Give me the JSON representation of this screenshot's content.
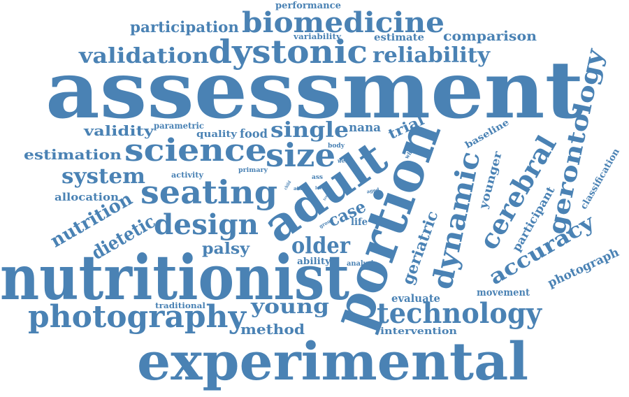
{
  "word_color": "#4a82b4",
  "background_color": "#ffffff",
  "words": {
    "assessment": "assessment",
    "nutritionist": "nutritionist",
    "experimental": "experimental",
    "portion": "portion",
    "adult": "adult",
    "biomedicine": "biomedicine",
    "dystonic": "dystonic",
    "validation": "validation",
    "reliability": "reliability",
    "participation": "participation",
    "performance": "performance",
    "comparison": "comparison",
    "variability": "variability",
    "estimate": "estimate",
    "gerontology": "gerontology",
    "cerebral": "cerebral",
    "dynamic": "dynamic",
    "accuracy": "accuracy",
    "science": "science",
    "seating": "seating",
    "design": "design",
    "size": "size",
    "single": "single",
    "nana": "nana",
    "trial": "trial",
    "baseline": "baseline",
    "younger": "younger",
    "photography": "photography",
    "technology": "technology",
    "young": "young",
    "older": "older",
    "palsy": "palsy",
    "system": "system",
    "estimation": "estimation",
    "validity": "validity",
    "parametric": "parametric",
    "quality": "quality",
    "food": "food",
    "activity": "activity",
    "primary": "primary",
    "allocation": "allocation",
    "nutrition": "nutrition",
    "dietetic": "dietetic",
    "case": "case",
    "life": "life",
    "geriatric": "geriatric",
    "participant": "participant",
    "classification": "classification",
    "photograph": "photograph",
    "method": "method",
    "intervention": "intervention",
    "evaluate": "evaluate",
    "movement": "movement",
    "traditional": "traditional",
    "ability": "ability",
    "analysis": "analysis",
    "body": "body",
    "week": "week",
    "whole": "whole",
    "ass": "ass",
    "level": "level",
    "child": "child",
    "aid": "aid",
    "group": "group",
    "aged": "aged",
    "trait": "trait"
  }
}
